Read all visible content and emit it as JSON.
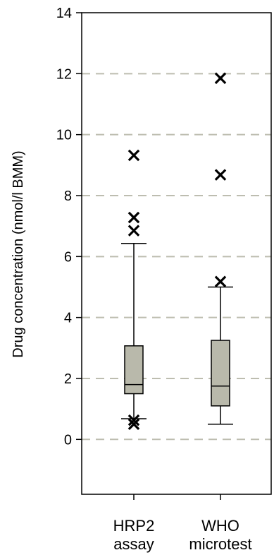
{
  "chart_data": {
    "type": "box",
    "ylabel": "Drug concentration (nmol/l BMM)",
    "ylim": [
      -1.8,
      14
    ],
    "yticks": [
      0,
      2,
      4,
      6,
      8,
      10,
      12,
      14
    ],
    "grid": "horizontal dashed",
    "categories": [
      {
        "line1": "HRP2",
        "line2": "assay"
      },
      {
        "line1": "WHO",
        "line2": "microtest"
      }
    ],
    "boxes": [
      {
        "category": "HRP2 assay",
        "whisker_low": 0.68,
        "q1": 1.5,
        "median": 1.8,
        "q3": 3.07,
        "whisker_high": 6.43,
        "outliers": [
          9.32,
          7.28,
          6.85,
          0.63,
          0.5
        ]
      },
      {
        "category": "WHO microtest",
        "whisker_low": 0.5,
        "q1": 1.1,
        "median": 1.75,
        "q3": 3.25,
        "whisker_high": 5.0,
        "outliers": [
          11.85,
          8.68,
          5.18
        ]
      }
    ],
    "box_color": "#b9b9ab",
    "grid_color": "#bdbdb0"
  }
}
